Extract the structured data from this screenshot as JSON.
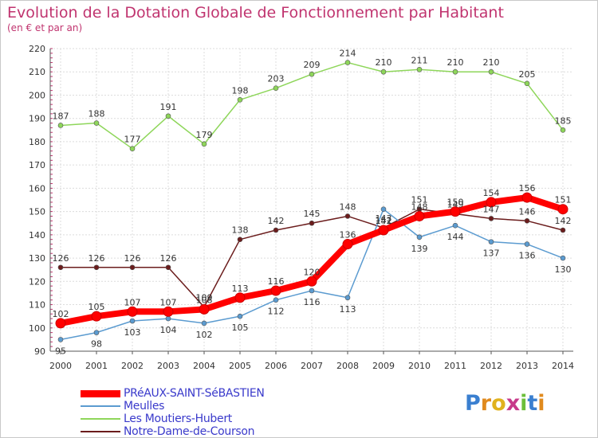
{
  "chart_data": {
    "type": "line",
    "title": "Evolution de la Dotation Globale de Fonctionnement par Habitant",
    "subtitle": "(en € et par an)",
    "x": [
      2000,
      2001,
      2002,
      2003,
      2004,
      2005,
      2006,
      2007,
      2008,
      2009,
      2010,
      2011,
      2012,
      2013,
      2014
    ],
    "ylim": [
      90,
      220
    ],
    "yticks": [
      90,
      100,
      110,
      120,
      130,
      140,
      150,
      160,
      170,
      180,
      190,
      200,
      210,
      220
    ],
    "grid": true,
    "series": [
      {
        "name": "Notre-Dame-de-Courson",
        "color": "#6b1c1c",
        "values": [
          126,
          126,
          126,
          126,
          109,
          138,
          142,
          145,
          148,
          143,
          151,
          149,
          147,
          146,
          142
        ]
      },
      {
        "name": "Les Moutiers-Hubert",
        "color": "#8ed65a",
        "values": [
          187,
          188,
          177,
          191,
          179,
          198,
          203,
          209,
          214,
          210,
          211,
          210,
          210,
          205,
          185
        ]
      },
      {
        "name": "Meulles",
        "color": "#5b9bd0",
        "values": [
          95,
          98,
          103,
          104,
          102,
          105,
          112,
          116,
          113,
          151,
          139,
          144,
          137,
          136,
          130
        ]
      },
      {
        "name": "PRéAUX-SAINT-SéBASTIEN",
        "color": "#ff0000",
        "values": [
          102,
          105,
          107,
          107,
          108,
          113,
          116,
          120,
          136,
          142,
          148,
          150,
          154,
          156,
          151
        ]
      }
    ],
    "legend_order": [
      "PRéAUX-SAINT-SéBASTIEN",
      "Meulles",
      "Les Moutiers-Hubert",
      "Notre-Dame-de-Courson"
    ]
  },
  "logo": {
    "text": "Proxiti"
  }
}
